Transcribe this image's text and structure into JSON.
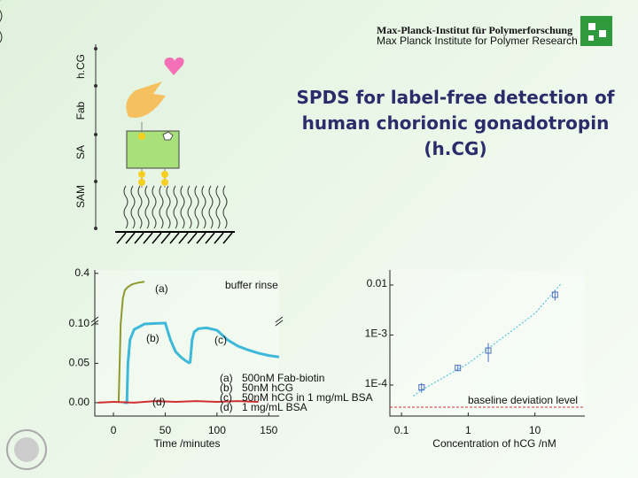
{
  "header": {
    "institute": "Max-Planck-Institut für Polymerforschung",
    "institute_en": "Max Planck Institute for Polymer Research"
  },
  "title": "SPDS for label-free detection of human chorionic gonadotropin (h.CG)",
  "layers": [
    "h.CG",
    "Fab",
    "SA",
    "SAM"
  ],
  "chart_data": [
    {
      "type": "line",
      "xlabel": "Time /minutes",
      "xlim": [
        -18,
        160
      ],
      "xticks": [
        0,
        50,
        100,
        150
      ],
      "ylim": [
        -0.017,
        0.42
      ],
      "yticks": [
        {
          "value": 0,
          "label": "0.00"
        },
        {
          "value": 0.05,
          "label": "0.05"
        },
        {
          "value": 0.1,
          "label": "0.10"
        },
        0.4
      ],
      "annotation": "buffer rinse",
      "series": [
        {
          "name": "(a)",
          "color": "#8c9a2c",
          "x": [
            5,
            7,
            9,
            11,
            14,
            18,
            24,
            30
          ],
          "values": [
            0,
            0.1,
            0.25,
            0.3,
            0.32,
            0.335,
            0.345,
            0.35
          ]
        },
        {
          "name": "(b)",
          "color": "#3db8d8",
          "x": [
            10,
            13,
            14,
            16,
            20,
            30,
            40,
            50,
            55,
            60,
            65,
            70,
            74
          ],
          "values": [
            0,
            0,
            0.05,
            0.08,
            0.093,
            0.1,
            0.103,
            0.105,
            0.08,
            0.065,
            0.058,
            0.053,
            0.05
          ]
        },
        {
          "name": "(c)",
          "color": "#3db8d8",
          "x": [
            74,
            76,
            78,
            82,
            90,
            100,
            110,
            120,
            130,
            140,
            150,
            160
          ],
          "values": [
            0.05,
            0.08,
            0.09,
            0.094,
            0.095,
            0.092,
            0.08,
            0.072,
            0.067,
            0.063,
            0.06,
            0.058
          ]
        },
        {
          "name": "(d)",
          "color": "#d03030",
          "x": [
            -15,
            0,
            20,
            40,
            60,
            80,
            100,
            120,
            140
          ],
          "values": [
            0,
            0.001,
            0,
            0.002,
            0.001,
            0.002,
            0.001,
            0.002,
            0.001
          ]
        }
      ],
      "legend": [
        {
          "key": "(a)",
          "label": "500nM Fab-biotin"
        },
        {
          "key": "(b)",
          "label": "50nM hCG"
        },
        {
          "key": "(c)",
          "label": "50nM hCG in 1 mg/mL BSA"
        },
        {
          "key": "(d)",
          "label": "1 mg/mL BSA"
        }
      ]
    },
    {
      "type": "scatter",
      "xlabel": "Concentration of hCG /nM",
      "log_x": true,
      "log_y": true,
      "xlim": [
        0.067,
        56
      ],
      "xticks": [
        0.1,
        1,
        10
      ],
      "ylim": [
        2.4e-05,
        0.02
      ],
      "yticks": [
        {
          "value": 0.0001,
          "label": "1E-4"
        },
        {
          "value": 0.001,
          "label": "1E-3"
        },
        0.01
      ],
      "x": [
        0.2,
        0.7,
        2,
        20
      ],
      "values": [
        9e-05,
        0.00022,
        0.00049,
        0.0064
      ],
      "errors": [
        2e-05,
        3e-05,
        0.0002,
        0.0015
      ],
      "color": "#4a6fc0",
      "fit": {
        "x": [
          0.15,
          0.2,
          1,
          10,
          25
        ],
        "values": [
          6e-05,
          8e-05,
          0.00027,
          0.0027,
          0.0108
        ],
        "color": "#3db8d8"
      },
      "baseline": 3.6e-05,
      "baseline_color": "#d03030",
      "annotation": "baseline deviation level"
    }
  ]
}
